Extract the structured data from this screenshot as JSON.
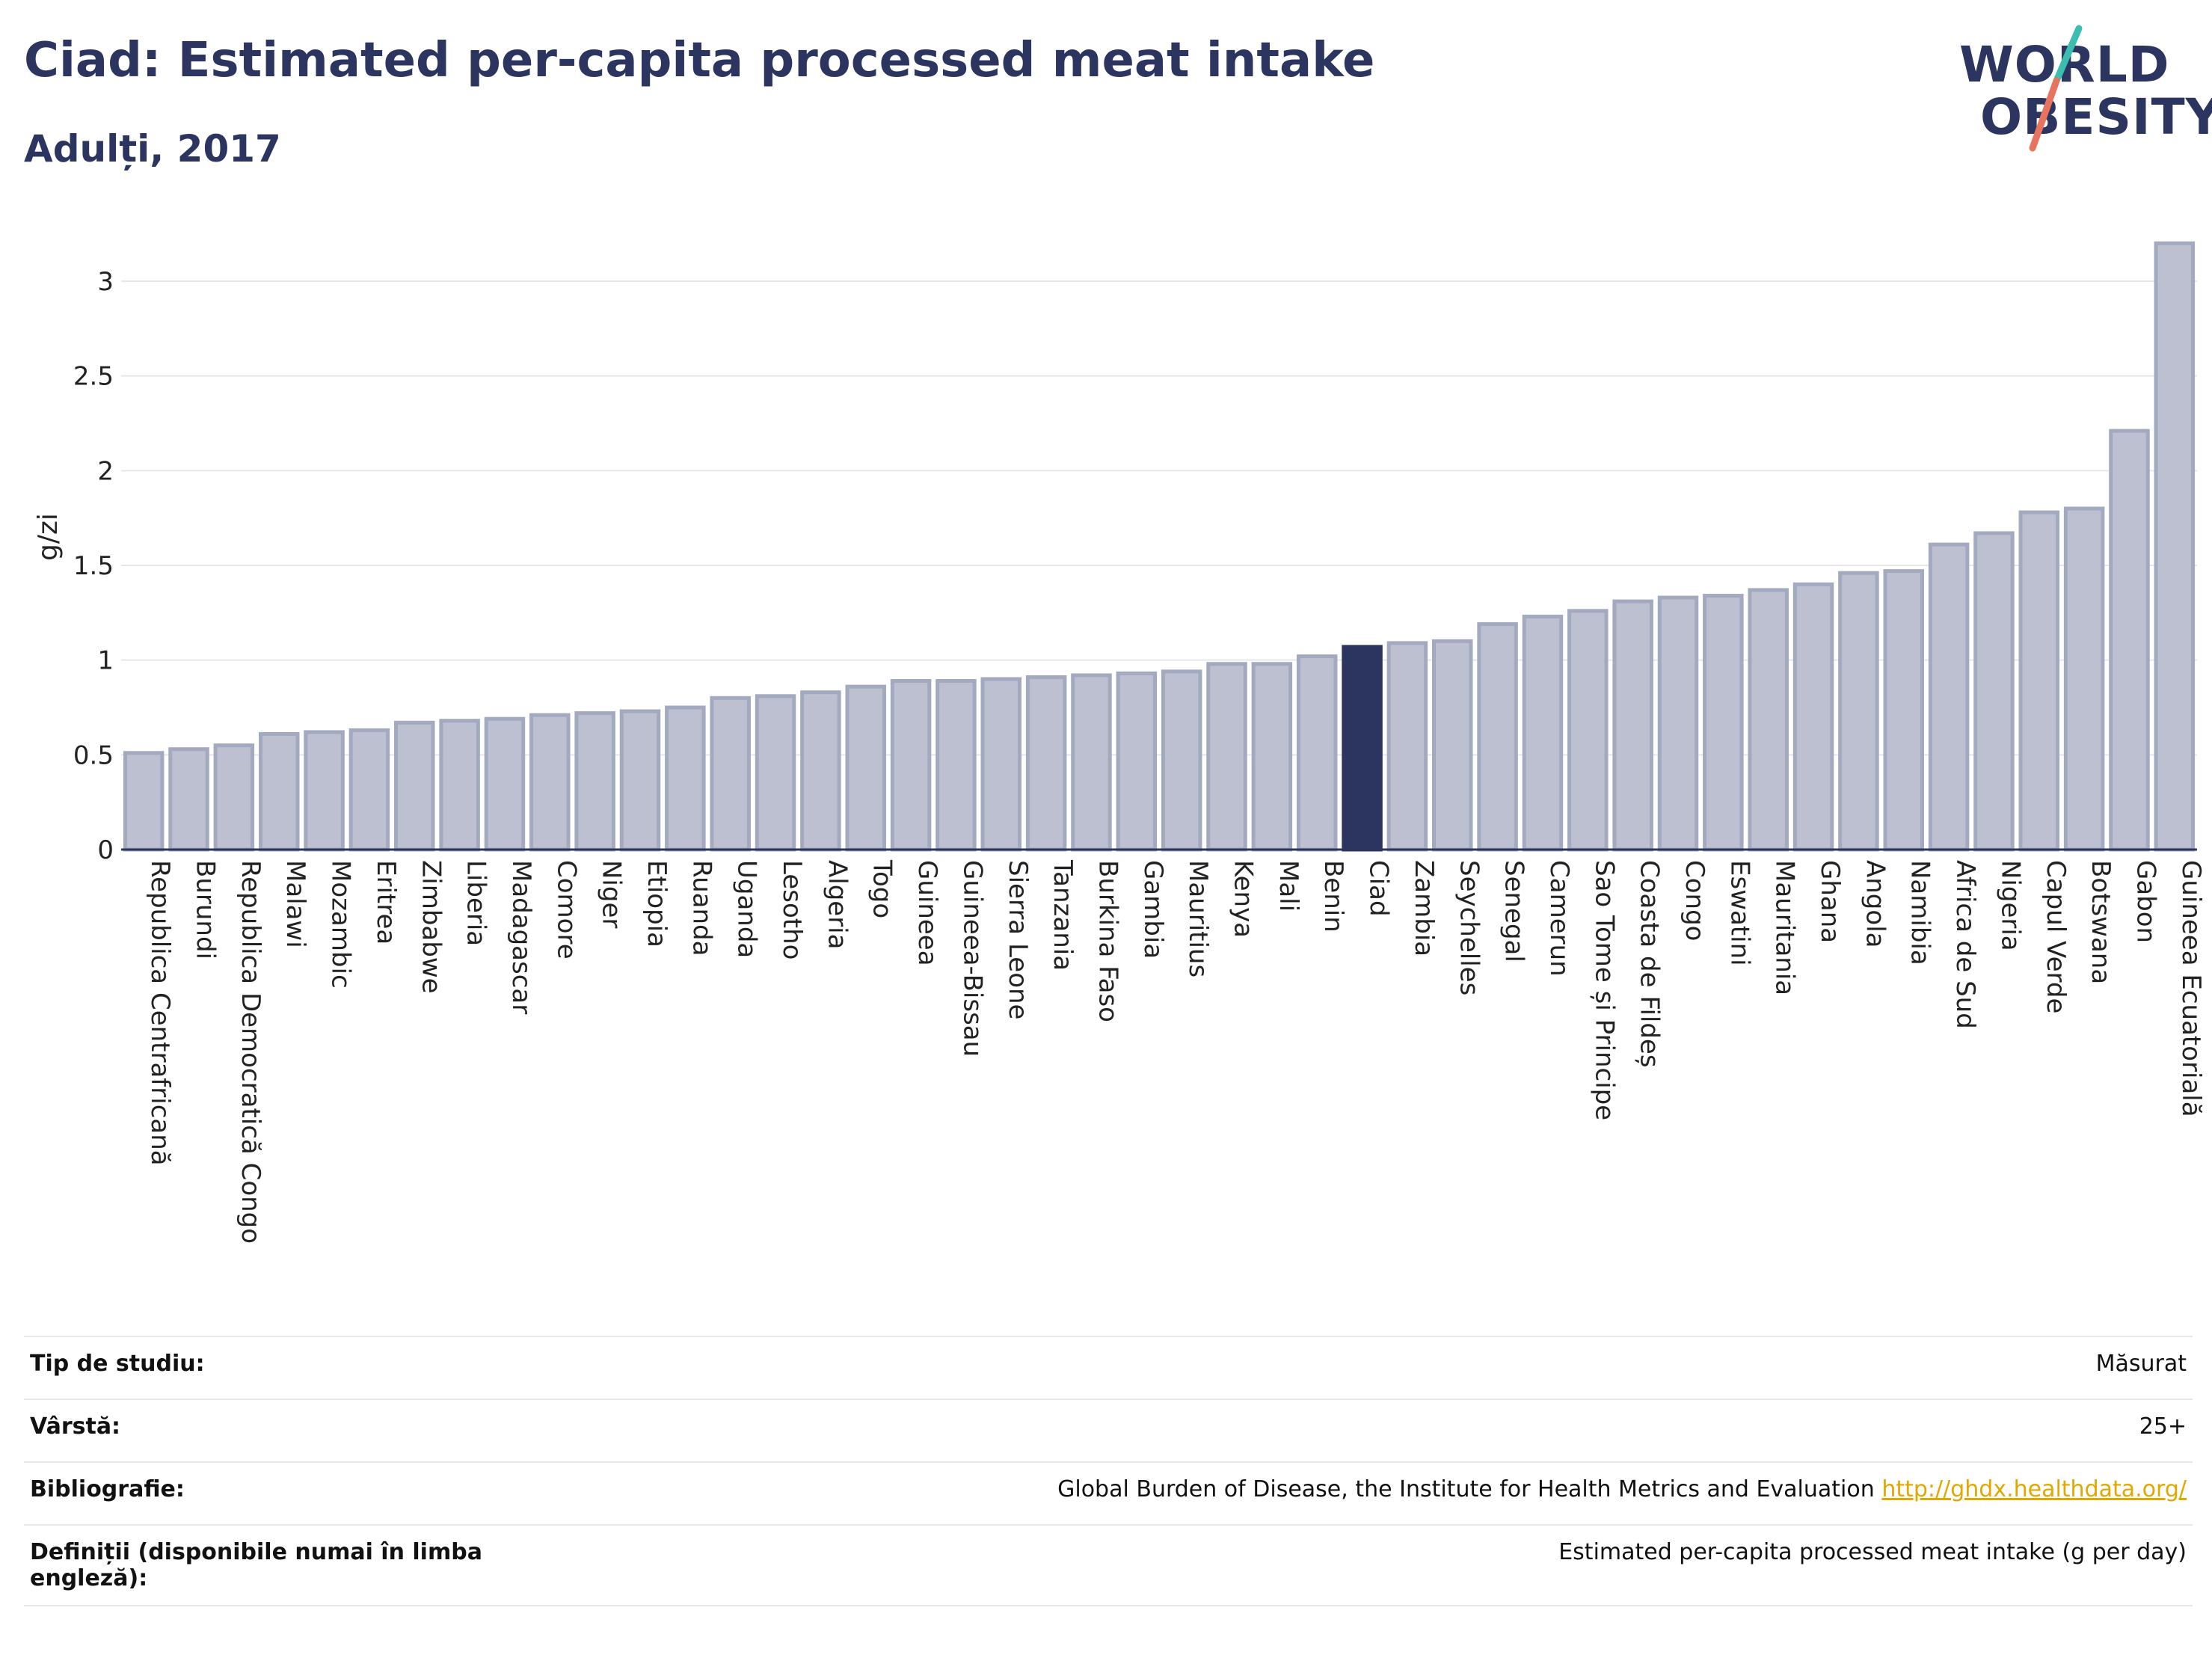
{
  "header": {
    "title": "Ciad: Estimated per-capita processed meat intake",
    "subtitle": "Adulți, 2017"
  },
  "logo": {
    "line1": "WORLD",
    "line2": "OBESITY"
  },
  "colors": {
    "bar": "#bcc0d0",
    "bar_stroke": "#a3a9bf",
    "highlight": "#2b3560",
    "grid": "#e6e6ec",
    "axis": "#2b3560"
  },
  "chart_data": {
    "type": "bar",
    "ylabel": "g/zi",
    "ylim": [
      0,
      3.3
    ],
    "yticks": [
      0,
      0.5,
      1,
      1.5,
      2,
      2.5,
      3
    ],
    "ytick_labels": [
      "0",
      "0.5",
      "1",
      "1.5",
      "2",
      "2.5",
      "3"
    ],
    "grid": true,
    "highlight": "Ciad",
    "categories": [
      "Republica Centrafricană",
      "Burundi",
      "Republica Democratică Congo",
      "Malawi",
      "Mozambic",
      "Eritrea",
      "Zimbabwe",
      "Liberia",
      "Madagascar",
      "Comore",
      "Niger",
      "Etiopia",
      "Ruanda",
      "Uganda",
      "Lesotho",
      "Algeria",
      "Togo",
      "Guineea",
      "Guineea-Bissau",
      "Sierra Leone",
      "Tanzania",
      "Burkina Faso",
      "Gambia",
      "Mauritius",
      "Kenya",
      "Mali",
      "Benin",
      "Ciad",
      "Zambia",
      "Seychelles",
      "Senegal",
      "Camerun",
      "Sao Tome și Principe",
      "Coasta de Fildeș",
      "Congo",
      "Eswatini",
      "Mauritania",
      "Ghana",
      "Angola",
      "Namibia",
      "Africa de Sud",
      "Nigeria",
      "Capul Verde",
      "Botswana",
      "Gabon",
      "Guineea Ecuatorială"
    ],
    "values": [
      0.51,
      0.53,
      0.55,
      0.61,
      0.62,
      0.63,
      0.67,
      0.68,
      0.69,
      0.71,
      0.72,
      0.73,
      0.75,
      0.8,
      0.81,
      0.83,
      0.86,
      0.89,
      0.89,
      0.9,
      0.91,
      0.92,
      0.93,
      0.94,
      0.98,
      0.98,
      1.02,
      1.07,
      1.09,
      1.1,
      1.19,
      1.23,
      1.26,
      1.31,
      1.33,
      1.34,
      1.37,
      1.4,
      1.46,
      1.47,
      1.61,
      1.67,
      1.78,
      1.8,
      2.21,
      3.2
    ]
  },
  "info": [
    {
      "key": "Tip de studiu:",
      "value": "Măsurat"
    },
    {
      "key": "Vârstă:",
      "value": "25+"
    },
    {
      "key": "Bibliografie:",
      "value": "Global Burden of Disease, the Institute for Health Metrics and Evaluation",
      "link": "http://ghdx.healthdata.org/"
    },
    {
      "key": "Definiții (disponibile numai în limba engleză):",
      "value": "Estimated per-capita processed meat intake (g per day)"
    }
  ]
}
